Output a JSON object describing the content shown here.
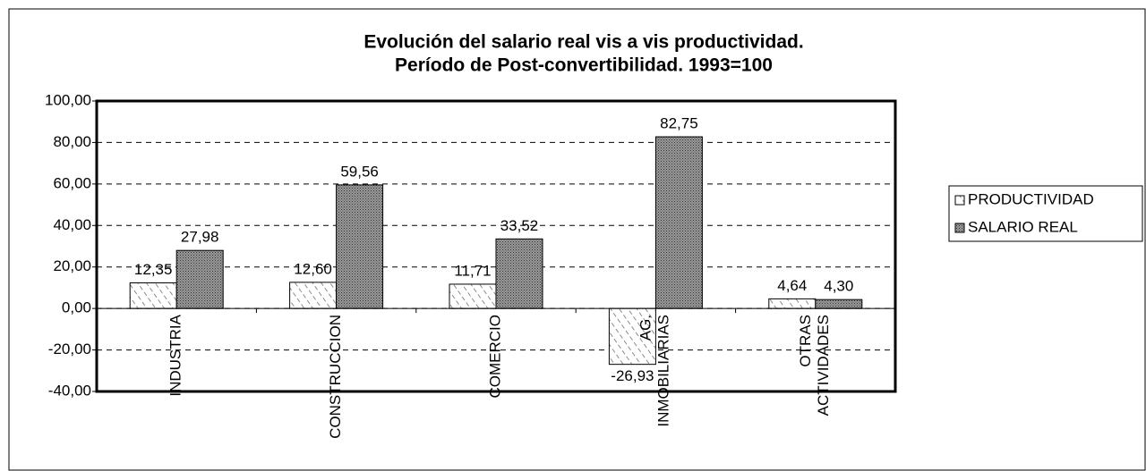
{
  "chart_data": {
    "type": "bar",
    "title": "Evolución del salario real vis a vis productividad.",
    "subtitle": "Período de Post-convertibilidad. 1993=100",
    "categories": [
      "INDUSTRIA",
      "CONSTRUCCION",
      "COMERCIO",
      "AG. INMOBILIARIAS",
      "OTRAS ACTIVIDADES"
    ],
    "series": [
      {
        "name": "PRODUCTIVIDAD",
        "color": "#ffffff",
        "values": [
          12.35,
          12.6,
          11.71,
          -26.93,
          4.64
        ],
        "value_labels": [
          "12,35",
          "12,60",
          "11,71",
          "-26,93",
          "4,64"
        ]
      },
      {
        "name": "SALARIO REAL",
        "color": "#7f7f7f",
        "values": [
          27.98,
          59.56,
          33.52,
          82.75,
          4.3
        ],
        "value_labels": [
          "27,98",
          "59,56",
          "33,52",
          "82,75",
          "4,30"
        ]
      }
    ],
    "ylim": [
      -40,
      100
    ],
    "yticks": [
      {
        "value": 100,
        "label": "100,00"
      },
      {
        "value": 80,
        "label": "80,00"
      },
      {
        "value": 60,
        "label": "60,00"
      },
      {
        "value": 40,
        "label": "40,00"
      },
      {
        "value": 20,
        "label": "20,00"
      },
      {
        "value": 0,
        "label": "0,00"
      },
      {
        "value": -20,
        "label": "-20,00"
      },
      {
        "value": -40,
        "label": "-40,00"
      }
    ],
    "grid": true,
    "legend": "right"
  }
}
